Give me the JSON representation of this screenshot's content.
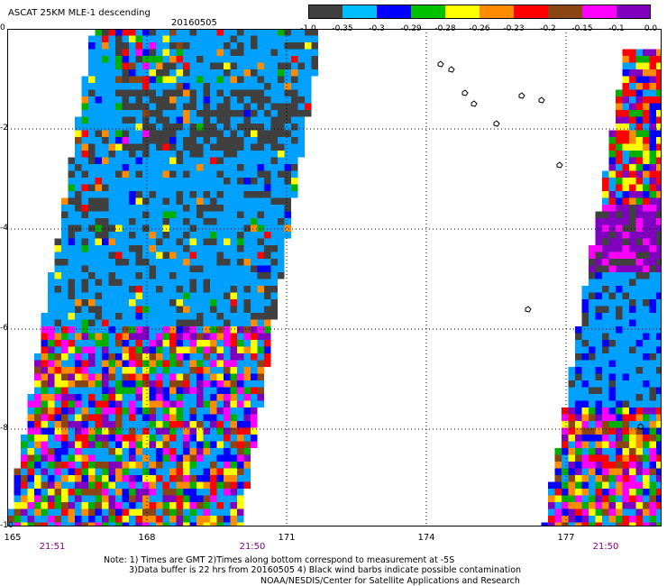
{
  "header": {
    "title": "ASCAT 25KM MLE-1 descending",
    "date": "20160505"
  },
  "colorbar": {
    "labels": [
      "-1.0",
      "-0.35",
      "-0.3",
      "-0.29",
      "-0.28",
      "-0.26",
      "-0.23",
      "-0.2",
      "-0.15",
      "-0.1",
      "0.0"
    ],
    "colors": [
      "#404040",
      "#00bfff",
      "#0000ff",
      "#00c000",
      "#ffff00",
      "#ff8c00",
      "#ff0000",
      "#8b4513",
      "#ff00ff",
      "#8000c0"
    ]
  },
  "axes": {
    "y_ticks": [
      "0",
      "-2",
      "-4",
      "-6",
      "-8",
      "-10"
    ],
    "x_ticks": [
      "165",
      "168",
      "171",
      "174",
      "177"
    ],
    "times": [
      "21:51",
      "21:50",
      "21:50"
    ]
  },
  "notes": {
    "line1": "Note: 1) Times are GMT 2)Times along bottom correspond to measurement at -5S",
    "line2": "3)Data buffer is 22 hrs from 20160505 4) Black wind barbs indicate possible contamination",
    "line3": "NOAA/NESDIS/Center for Satellite Applications and Research"
  }
}
